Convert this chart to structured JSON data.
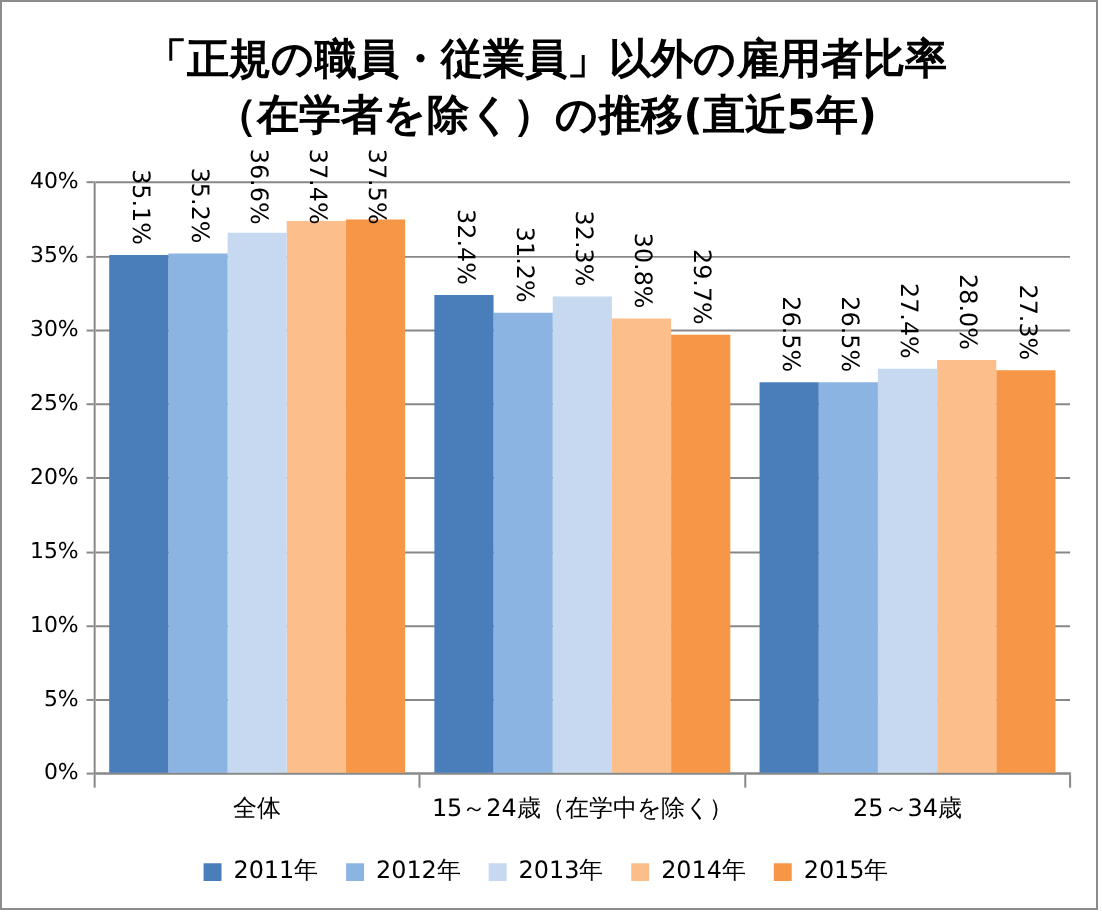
{
  "chart_data": {
    "type": "bar",
    "title": "「正規の職員・従業員」以外の雇用者比率（在学者を除く）の推移(直近5年)",
    "categories": [
      "全体",
      "15～24歳（在学中を除く）",
      "25～34歳"
    ],
    "series": [
      {
        "name": "2011年",
        "color": "#4a7ebb",
        "values": [
          35.1,
          32.4,
          26.5
        ],
        "value_labels": [
          "35.1%",
          "32.4%",
          "26.5%"
        ]
      },
      {
        "name": "2012年",
        "color": "#8cb4e2",
        "values": [
          35.2,
          31.2,
          26.5
        ],
        "value_labels": [
          "35.2%",
          "31.2%",
          "26.5%"
        ]
      },
      {
        "name": "2013年",
        "color": "#c6d9f0",
        "values": [
          36.6,
          32.3,
          27.4
        ],
        "value_labels": [
          "36.6%",
          "32.3%",
          "27.4%"
        ]
      },
      {
        "name": "2014年",
        "color": "#fcbf8c",
        "values": [
          37.4,
          30.8,
          28.0
        ],
        "value_labels": [
          "37.4%",
          "30.8%",
          "28.0%"
        ]
      },
      {
        "name": "2015年",
        "color": "#f79646",
        "values": [
          37.5,
          29.7,
          27.3
        ],
        "value_labels": [
          "37.5%",
          "29.7%",
          "27.3%"
        ]
      }
    ],
    "ylim": [
      0,
      40
    ],
    "yticks": [
      {
        "value": 0,
        "label": "0%"
      },
      {
        "value": 5,
        "label": "5%"
      },
      {
        "value": 10,
        "label": "10%"
      },
      {
        "value": 15,
        "label": "15%"
      },
      {
        "value": 20,
        "label": "20%"
      },
      {
        "value": 25,
        "label": "25%"
      },
      {
        "value": 30,
        "label": "30%"
      },
      {
        "value": 35,
        "label": "35%"
      },
      {
        "value": 40,
        "label": "40%"
      }
    ],
    "grid": "y",
    "legend": "bottom"
  }
}
